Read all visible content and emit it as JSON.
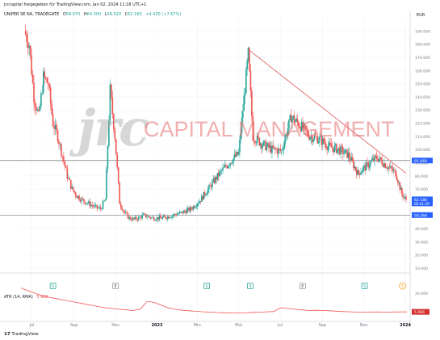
{
  "header": {
    "published_line": "jrccapital freigegeben für TradingView.com, Jan 02, 2024 11:18 UTC+1",
    "symbol_line": "UNIPER SE NA, TRADEGATE",
    "ohlc": [
      {
        "key": "O",
        "value": "58.870"
      },
      {
        "key": "H",
        "value": "64.300"
      },
      {
        "key": "L",
        "value": "58.520"
      },
      {
        "key": "C",
        "value": "62.180"
      },
      {
        "key": "",
        "value": "+4.430 (+7.67%)"
      }
    ],
    "currency": "EUR"
  },
  "watermark": {
    "logo": "jrc",
    "text": "CAPITAL MANAGEMENT"
  },
  "indicator": {
    "label": "ATR (14, RMA)",
    "value": "5.986",
    "axis_tick": "20.000",
    "last_tag": "5.986"
  },
  "branding": {
    "tradingview": "TradingView"
  },
  "colors": {
    "up": "#26a69a",
    "down": "#ef5350",
    "trendline": "#e57373",
    "hline": "#787b86",
    "atr": "#ef5350",
    "tag_blue": "#2962ff",
    "tag_red": "#d32f2f"
  },
  "chart_data": [
    {
      "type": "candlestick",
      "title": "UNIPER SE NA, TRADEGATE",
      "ylabel": "EUR",
      "y_ticks": [
        "190.000",
        "180.000",
        "170.000",
        "160.000",
        "150.000",
        "140.000",
        "130.000",
        "120.000",
        "110.000",
        "100.000",
        "90.000",
        "80.000",
        "70.000",
        "60.000",
        "50.000",
        "40.000",
        "30.000",
        "20.000",
        "10.000"
      ],
      "ylim": [
        10,
        195
      ],
      "x_ticks": [
        "Jul",
        "Sep",
        "Nov",
        "2023",
        "Mrz",
        "Mai",
        "Jul",
        "Sep",
        "Nov",
        "2024"
      ],
      "price_tags": [
        {
          "label": "91.660",
          "value": 91.66,
          "color": "tag_blue"
        },
        {
          "label": "62.180",
          "sub": "00:41:29",
          "value": 62.18,
          "color": "tag_blue"
        },
        {
          "label": "50.264",
          "value": 50.26,
          "color": "tag_blue"
        }
      ],
      "horizontal_lines": [
        91.66,
        50.26
      ],
      "trendline": {
        "from": {
          "x": "2023-05-15",
          "y": 176
        },
        "to": {
          "x": "2024-01-02",
          "y": 82
        }
      },
      "event_markers": [
        {
          "x": "2022-08-01",
          "letter": "S"
        },
        {
          "x": "2022-11-01",
          "letter": "E"
        },
        {
          "x": "2023-03-15",
          "letter": "S"
        },
        {
          "x": "2023-05-18",
          "letter": "S"
        },
        {
          "x": "2023-08-03",
          "letter": "E"
        },
        {
          "x": "2023-11-02",
          "letter": "S"
        },
        {
          "x": "2023-12-28",
          "letter": "S"
        }
      ],
      "series": [
        {
          "name": "UNIPER SE NA",
          "x": [
            "2022-06-20",
            "2022-06-27",
            "2022-07-04",
            "2022-07-11",
            "2022-07-18",
            "2022-07-25",
            "2022-08-01",
            "2022-08-08",
            "2022-08-15",
            "2022-08-22",
            "2022-08-29",
            "2022-09-05",
            "2022-09-12",
            "2022-09-19",
            "2022-09-26",
            "2022-10-03",
            "2022-10-10",
            "2022-10-17",
            "2022-10-24",
            "2022-10-31",
            "2022-11-07",
            "2022-11-14",
            "2022-11-21",
            "2022-11-28",
            "2022-12-05",
            "2022-12-12",
            "2022-12-19",
            "2022-12-26",
            "2023-01-09",
            "2023-01-23",
            "2023-02-06",
            "2023-02-20",
            "2023-03-06",
            "2023-03-20",
            "2023-04-03",
            "2023-04-17",
            "2023-05-01",
            "2023-05-15",
            "2023-05-22",
            "2023-06-05",
            "2023-06-19",
            "2023-07-03",
            "2023-07-17",
            "2023-07-31",
            "2023-08-14",
            "2023-08-28",
            "2023-09-11",
            "2023-09-25",
            "2023-10-09",
            "2023-10-23",
            "2023-11-06",
            "2023-11-20",
            "2023-12-04",
            "2023-12-18",
            "2023-12-27",
            "2024-01-02"
          ],
          "close": [
            190,
            180,
            140,
            125,
            155,
            150,
            120,
            110,
            95,
            80,
            70,
            65,
            62,
            60,
            58,
            56,
            55,
            62,
            145,
            110,
            60,
            52,
            48,
            47,
            48,
            50,
            49,
            48,
            48,
            50,
            52,
            55,
            62,
            72,
            82,
            90,
            97,
            172,
            110,
            104,
            100,
            99,
            125,
            118,
            110,
            108,
            102,
            100,
            96,
            82,
            88,
            94,
            88,
            82,
            66,
            62
          ]
        }
      ]
    },
    {
      "type": "line",
      "title": "ATR (14, RMA)",
      "y_ticks": [
        "20.000"
      ],
      "series": [
        {
          "name": "ATR (14, RMA)",
          "values": [
            24,
            22,
            20,
            18,
            17,
            16,
            15,
            14,
            13,
            12,
            11,
            10,
            9,
            8.5,
            8,
            7.5,
            7,
            8,
            14,
            13,
            11,
            9,
            8,
            7.2,
            6.8,
            6.4,
            6,
            5.8,
            5.5,
            5.3,
            5.2,
            5.1,
            5.2,
            5.6,
            5.8,
            6,
            6.2,
            9,
            8.5,
            8,
            7.5,
            7,
            7.2,
            7,
            6.8,
            6.5,
            6.2,
            6,
            5.8,
            5.8,
            5.9,
            5.9,
            5.8,
            5.9,
            6,
            5.986
          ]
        }
      ]
    }
  ]
}
